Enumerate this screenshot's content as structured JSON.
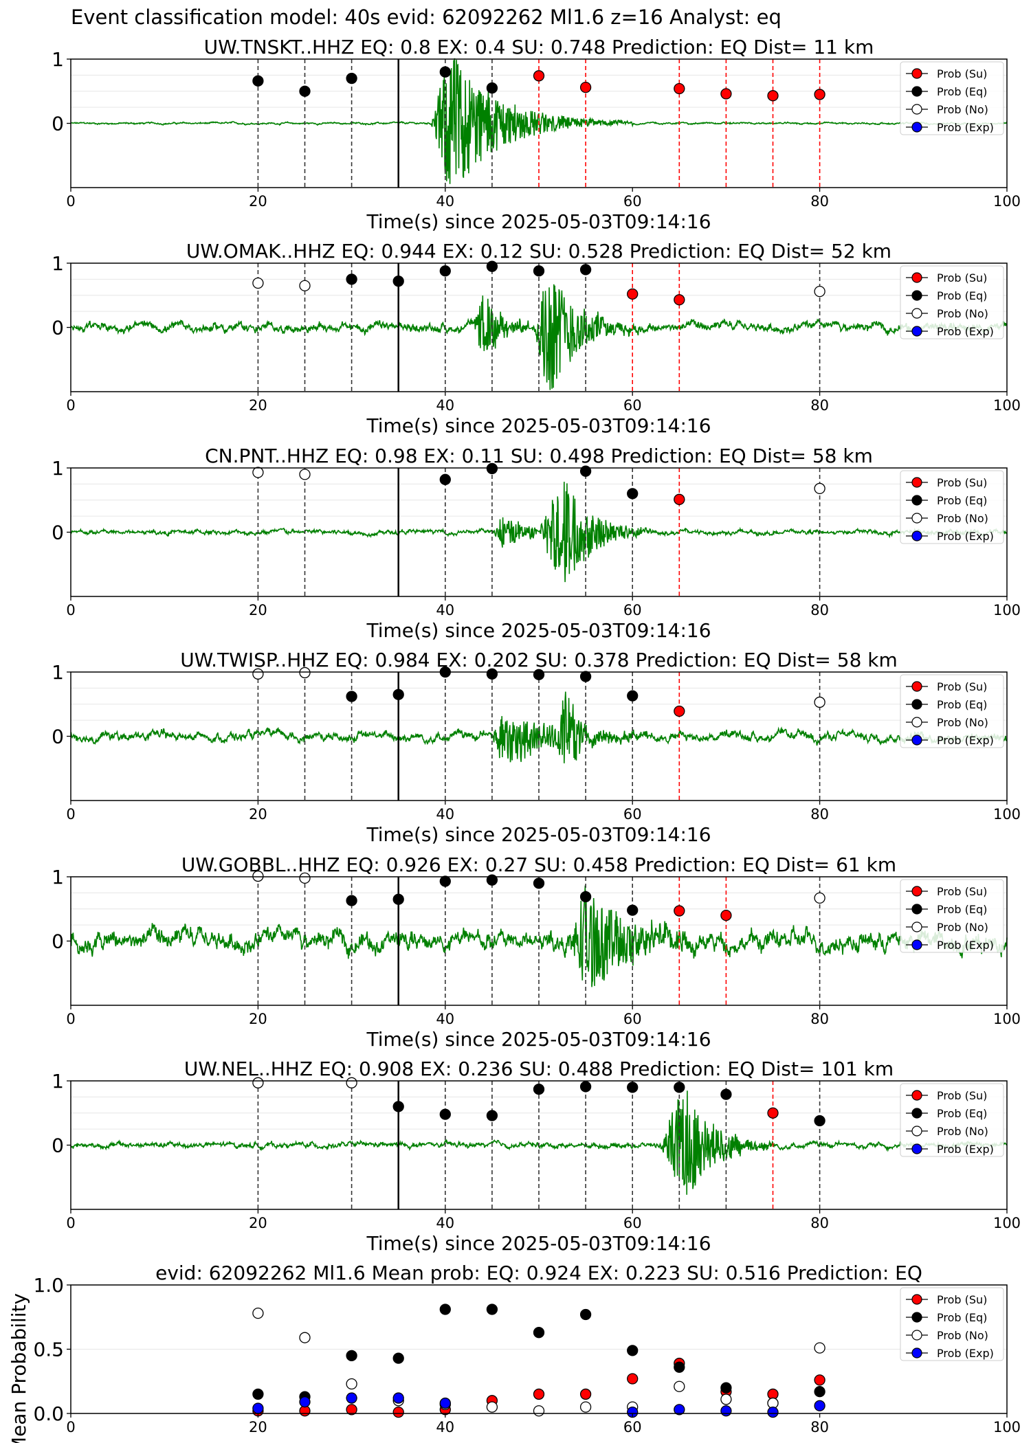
{
  "figure": {
    "suptitle": "Event classification model: 40s evid: 62092262 Ml1.6 z=16 Analyst: eq",
    "xlabel": "Time(s) since 2025-05-03T09:14:16",
    "legend": [
      "Prob (Su)",
      "Prob (Eq)",
      "Prob (No)",
      "Prob (Exp)"
    ],
    "colors": {
      "trace": "#008000",
      "su": "#ff0000",
      "eq": "#000000",
      "no": "#ffffff",
      "exp": "#0000ff",
      "pick": "#000000",
      "su_line": "#ff0000"
    }
  },
  "chart_data": [
    {
      "type": "scatter",
      "station": "UW.TNSKT..HHZ",
      "title": "UW.TNSKT..HHZ   EQ: 0.8  EX: 0.4  SU: 0.748   Prediction: EQ    Dist= 11 km",
      "xlim": [
        0,
        100
      ],
      "ylim": [
        -1,
        1
      ],
      "xticks": [
        0,
        20,
        40,
        60,
        80,
        100
      ],
      "yticks": [
        0,
        1
      ],
      "pick_time": 35,
      "legend_position": "upper-right",
      "series": [
        {
          "name": "Prob (Eq)",
          "points": [
            [
              20,
              0.66
            ],
            [
              25,
              0.5
            ],
            [
              30,
              0.7
            ],
            [
              40,
              0.8
            ],
            [
              45,
              0.55
            ]
          ]
        },
        {
          "name": "Prob (Su)",
          "points": [
            [
              50,
              0.74
            ],
            [
              55,
              0.56
            ],
            [
              65,
              0.54
            ],
            [
              70,
              0.46
            ],
            [
              75,
              0.43
            ],
            [
              80,
              0.45
            ]
          ]
        }
      ],
      "waveform": {
        "noise": 0.02,
        "bursts": [
          {
            "start": 38.5,
            "peak": 40.5,
            "end": 60,
            "amp": 1.2,
            "decay": 5
          }
        ]
      }
    },
    {
      "type": "scatter",
      "station": "UW.OMAK..HHZ",
      "title": "UW.OMAK..HHZ   EQ: 0.944  EX: 0.12  SU: 0.528   Prediction: EQ    Dist= 52 km",
      "xlim": [
        0,
        100
      ],
      "ylim": [
        -1,
        1
      ],
      "xticks": [
        0,
        20,
        40,
        60,
        80,
        100
      ],
      "yticks": [
        0,
        1
      ],
      "pick_time": 35,
      "legend_position": "upper-right",
      "series": [
        {
          "name": "Prob (No)",
          "points": [
            [
              20,
              0.69
            ],
            [
              25,
              0.65
            ],
            [
              80,
              0.56
            ]
          ]
        },
        {
          "name": "Prob (Eq)",
          "points": [
            [
              30,
              0.75
            ],
            [
              35,
              0.72
            ],
            [
              40,
              0.88
            ],
            [
              45,
              0.95
            ],
            [
              50,
              0.88
            ],
            [
              55,
              0.9
            ]
          ]
        },
        {
          "name": "Prob (Su)",
          "points": [
            [
              60,
              0.52
            ],
            [
              65,
              0.43
            ]
          ]
        }
      ],
      "waveform": {
        "noise": 0.1,
        "bursts": [
          {
            "start": 43,
            "peak": 44,
            "end": 49,
            "amp": 0.5,
            "decay": 2
          },
          {
            "start": 49.5,
            "peak": 51,
            "end": 62,
            "amp": 1.1,
            "decay": 3
          }
        ]
      }
    },
    {
      "type": "scatter",
      "station": "CN.PNT..HHZ",
      "title": "CN.PNT..HHZ   EQ: 0.98  EX: 0.11  SU: 0.498   Prediction: EQ    Dist= 58 km",
      "xlim": [
        0,
        100
      ],
      "ylim": [
        -1,
        1
      ],
      "xticks": [
        0,
        20,
        40,
        60,
        80,
        100
      ],
      "yticks": [
        0,
        1
      ],
      "pick_time": 35,
      "legend_position": "upper-right",
      "series": [
        {
          "name": "Prob (No)",
          "points": [
            [
              20,
              0.93
            ],
            [
              25,
              0.9
            ],
            [
              80,
              0.68
            ]
          ]
        },
        {
          "name": "Prob (Eq)",
          "points": [
            [
              40,
              0.82
            ],
            [
              45,
              0.99
            ],
            [
              55,
              0.95
            ],
            [
              60,
              0.6
            ]
          ]
        },
        {
          "name": "Prob (Su)",
          "points": [
            [
              65,
              0.51
            ]
          ]
        }
      ],
      "waveform": {
        "noise": 0.05,
        "bursts": [
          {
            "start": 45,
            "peak": 46,
            "end": 50,
            "amp": 0.25,
            "decay": 3
          },
          {
            "start": 50,
            "peak": 52.5,
            "end": 62,
            "amp": 0.95,
            "decay": 3
          }
        ]
      }
    },
    {
      "type": "scatter",
      "station": "UW.TWISP..HHZ",
      "title": "UW.TWISP..HHZ   EQ: 0.984  EX: 0.202  SU: 0.378   Prediction: EQ    Dist= 58 km",
      "xlim": [
        0,
        100
      ],
      "ylim": [
        -1,
        1
      ],
      "xticks": [
        0,
        20,
        40,
        60,
        80,
        100
      ],
      "yticks": [
        0,
        1
      ],
      "pick_time": 35,
      "legend_position": "upper-right",
      "series": [
        {
          "name": "Prob (No)",
          "points": [
            [
              20,
              0.97
            ],
            [
              25,
              0.99
            ],
            [
              80,
              0.53
            ]
          ]
        },
        {
          "name": "Prob (Eq)",
          "points": [
            [
              30,
              0.62
            ],
            [
              35,
              0.65
            ],
            [
              40,
              1.0
            ],
            [
              45,
              0.97
            ],
            [
              50,
              0.96
            ],
            [
              55,
              0.93
            ],
            [
              60,
              0.63
            ]
          ]
        },
        {
          "name": "Prob (Su)",
          "points": [
            [
              65,
              0.39
            ]
          ]
        }
      ],
      "waveform": {
        "noise": 0.1,
        "bursts": [
          {
            "start": 45,
            "peak": 46,
            "end": 62,
            "amp": 0.45,
            "decay": 6
          },
          {
            "start": 52,
            "peak": 53,
            "end": 56,
            "amp": 0.9,
            "decay": 1
          }
        ]
      }
    },
    {
      "type": "scatter",
      "station": "UW.GOBBL..HHZ",
      "title": "UW.GOBBL..HHZ   EQ: 0.926  EX: 0.27  SU: 0.458   Prediction: EQ    Dist= 61 km",
      "xlim": [
        0,
        100
      ],
      "ylim": [
        -1,
        1
      ],
      "xticks": [
        0,
        20,
        40,
        60,
        80,
        100
      ],
      "yticks": [
        0,
        1
      ],
      "pick_time": 35,
      "legend_position": "upper-right",
      "series": [
        {
          "name": "Prob (No)",
          "points": [
            [
              20,
              1.01
            ],
            [
              25,
              0.98
            ],
            [
              80,
              0.67
            ]
          ]
        },
        {
          "name": "Prob (Eq)",
          "points": [
            [
              30,
              0.63
            ],
            [
              35,
              0.65
            ],
            [
              40,
              0.93
            ],
            [
              45,
              0.95
            ],
            [
              50,
              0.9
            ],
            [
              55,
              0.69
            ],
            [
              60,
              0.48
            ]
          ]
        },
        {
          "name": "Prob (Su)",
          "points": [
            [
              65,
              0.47
            ],
            [
              70,
              0.4
            ]
          ]
        }
      ],
      "waveform": {
        "noise": 0.22,
        "bursts": [
          {
            "start": 53,
            "peak": 55,
            "end": 67,
            "amp": 0.85,
            "decay": 5
          }
        ]
      }
    },
    {
      "type": "scatter",
      "station": "UW.NEL..HHZ",
      "title": "UW.NEL..HHZ   EQ: 0.908  EX: 0.236  SU: 0.488   Prediction: EQ    Dist= 101 km",
      "xlim": [
        0,
        100
      ],
      "ylim": [
        -1,
        1
      ],
      "xticks": [
        0,
        20,
        40,
        60,
        80,
        100
      ],
      "yticks": [
        0,
        1
      ],
      "pick_time": 35,
      "legend_position": "upper-right",
      "series": [
        {
          "name": "Prob (No)",
          "points": [
            [
              20,
              0.97
            ],
            [
              30,
              0.97
            ]
          ]
        },
        {
          "name": "Prob (Eq)",
          "points": [
            [
              35,
              0.6
            ],
            [
              40,
              0.48
            ],
            [
              45,
              0.46
            ],
            [
              50,
              0.87
            ],
            [
              55,
              0.91
            ],
            [
              60,
              0.9
            ],
            [
              65,
              0.9
            ],
            [
              70,
              0.79
            ],
            [
              80,
              0.38
            ]
          ]
        },
        {
          "name": "Prob (Su)",
          "points": [
            [
              75,
              0.5
            ]
          ]
        }
      ],
      "waveform": {
        "noise": 0.06,
        "bursts": [
          {
            "start": 63,
            "peak": 65.5,
            "end": 75,
            "amp": 0.95,
            "decay": 3
          }
        ]
      }
    },
    {
      "type": "scatter",
      "title": "evid: 62092262  Ml1.6   Mean prob:   EQ: 0.924  EX: 0.223  SU: 0.516   Prediction: EQ",
      "ylabel": "Mean Probability",
      "xlim": [
        0,
        100
      ],
      "ylim": [
        0,
        1
      ],
      "xticks": [
        0,
        20,
        40,
        60,
        80,
        100
      ],
      "yticks": [
        0.0,
        0.5,
        1.0
      ],
      "legend_position": "upper-right",
      "series": [
        {
          "name": "Prob (Su)",
          "points": [
            [
              20,
              0.02
            ],
            [
              25,
              0.02
            ],
            [
              30,
              0.03
            ],
            [
              35,
              0.01
            ],
            [
              40,
              0.03
            ],
            [
              45,
              0.1
            ],
            [
              50,
              0.15
            ],
            [
              55,
              0.15
            ],
            [
              60,
              0.27
            ],
            [
              65,
              0.39
            ],
            [
              70,
              0.17
            ],
            [
              75,
              0.15
            ],
            [
              80,
              0.26
            ]
          ]
        },
        {
          "name": "Prob (Eq)",
          "points": [
            [
              20,
              0.15
            ],
            [
              25,
              0.13
            ],
            [
              30,
              0.45
            ],
            [
              35,
              0.43
            ],
            [
              40,
              0.81
            ],
            [
              45,
              0.81
            ],
            [
              50,
              0.63
            ],
            [
              55,
              0.77
            ],
            [
              60,
              0.49
            ],
            [
              65,
              0.36
            ],
            [
              70,
              0.2
            ],
            [
              75,
              0.08
            ],
            [
              80,
              0.17
            ]
          ]
        },
        {
          "name": "Prob (No)",
          "points": [
            [
              20,
              0.78
            ],
            [
              25,
              0.59
            ],
            [
              30,
              0.23
            ],
            [
              35,
              0.1
            ],
            [
              40,
              0.07
            ],
            [
              45,
              0.05
            ],
            [
              50,
              0.02
            ],
            [
              55,
              0.05
            ],
            [
              60,
              0.05
            ],
            [
              65,
              0.21
            ],
            [
              70,
              0.11
            ],
            [
              75,
              0.08
            ],
            [
              80,
              0.51
            ]
          ]
        },
        {
          "name": "Prob (Exp)",
          "points": [
            [
              20,
              0.04
            ],
            [
              25,
              0.09
            ],
            [
              30,
              0.12
            ],
            [
              35,
              0.12
            ],
            [
              40,
              0.08
            ],
            [
              60,
              0.01
            ],
            [
              65,
              0.03
            ],
            [
              70,
              0.02
            ],
            [
              75,
              0.01
            ],
            [
              80,
              0.06
            ]
          ]
        }
      ]
    }
  ]
}
